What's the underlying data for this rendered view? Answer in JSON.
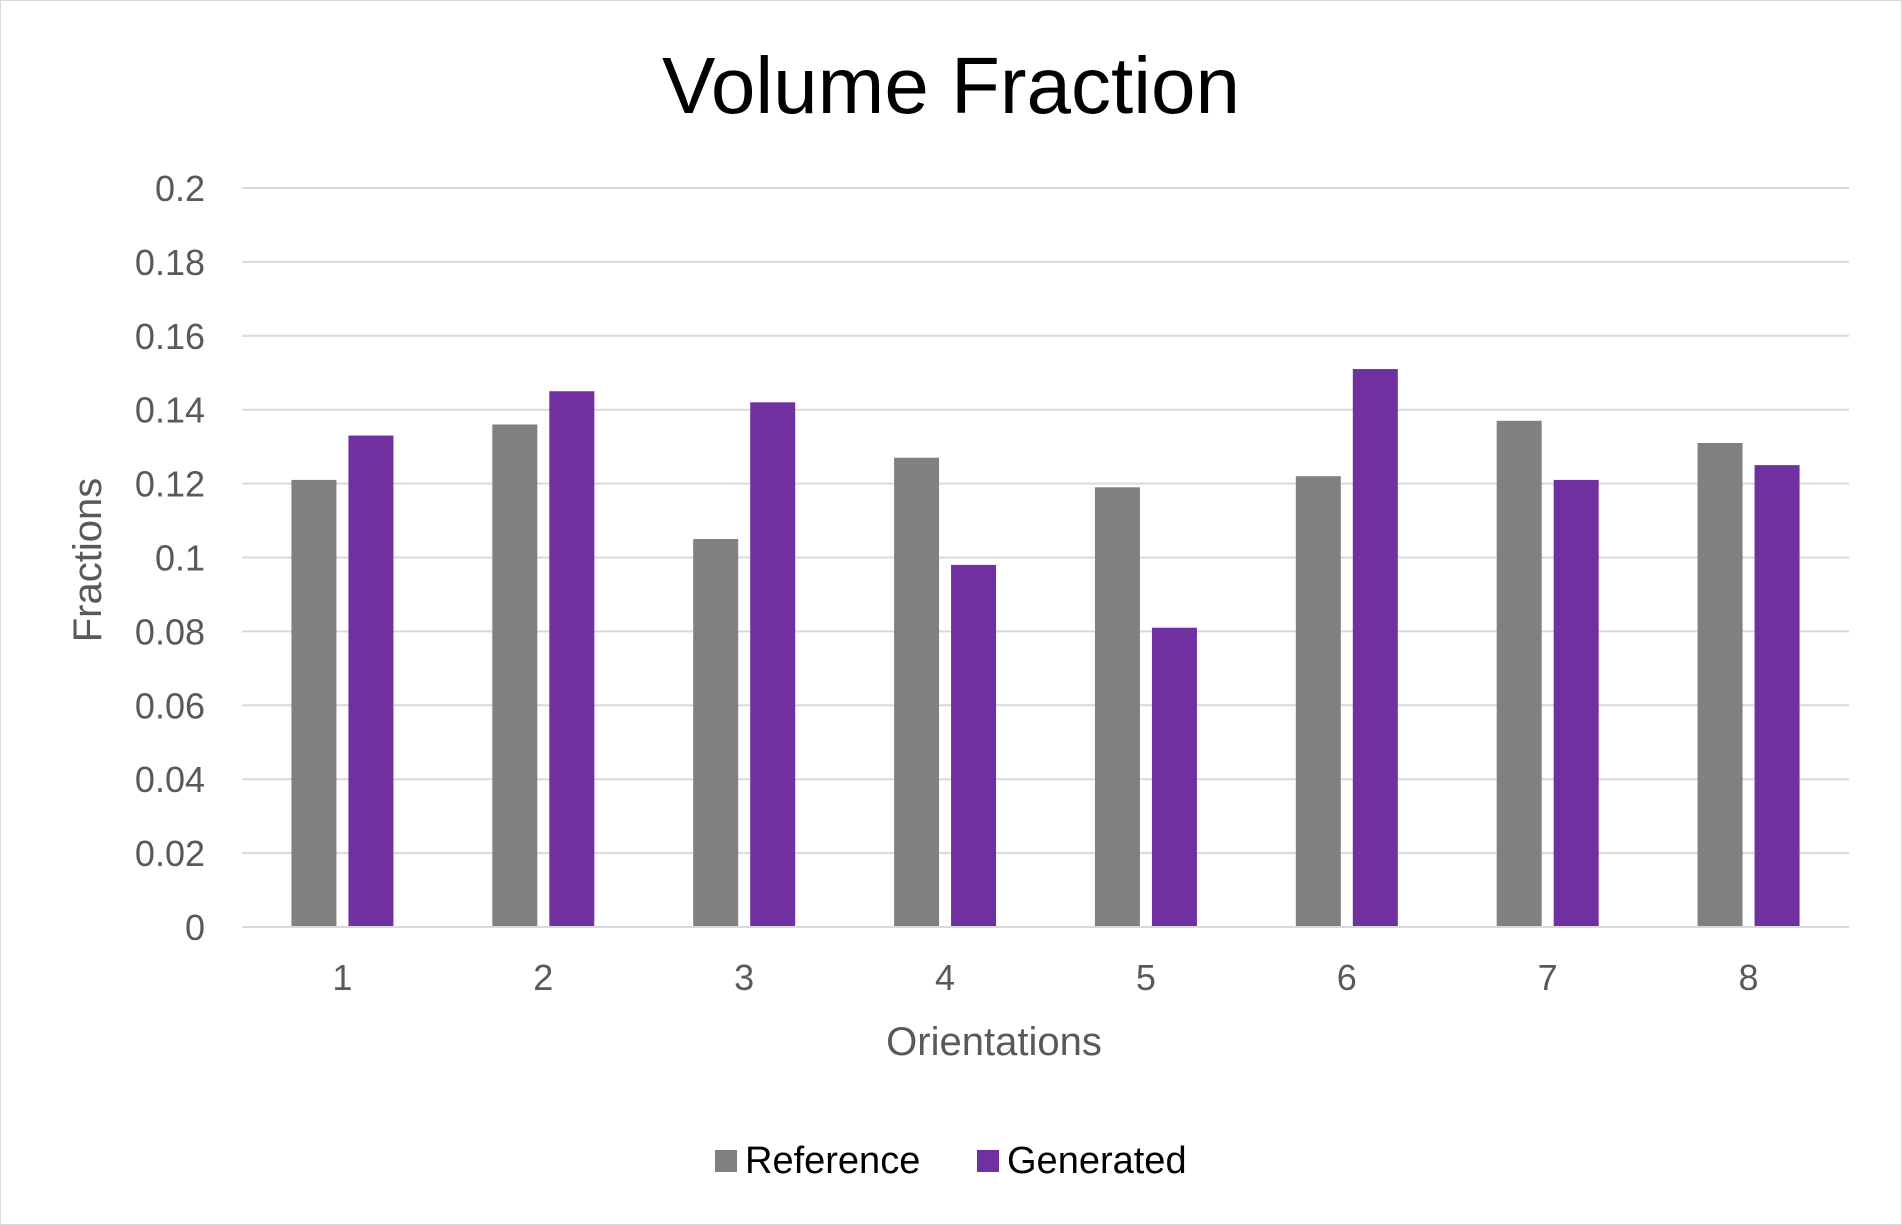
{
  "chart_data": {
    "type": "bar",
    "title": "Volume Fraction",
    "xlabel": "Orientations",
    "ylabel": "Fractions",
    "categories": [
      "1",
      "2",
      "3",
      "4",
      "5",
      "6",
      "7",
      "8"
    ],
    "ylim": [
      0,
      0.2
    ],
    "yticks": [
      0,
      0.02,
      0.04,
      0.06,
      0.08,
      0.1,
      0.12,
      0.14,
      0.16,
      0.18,
      0.2
    ],
    "ytick_labels": [
      "0",
      "0.02",
      "0.04",
      "0.06",
      "0.08",
      "0.1",
      "0.12",
      "0.14",
      "0.16",
      "0.18",
      "0.2"
    ],
    "grid": true,
    "legend_position": "bottom",
    "series": [
      {
        "name": "Reference",
        "color": "#808080",
        "values": [
          0.121,
          0.136,
          0.105,
          0.127,
          0.119,
          0.122,
          0.137,
          0.131
        ]
      },
      {
        "name": "Generated",
        "color": "#7030a0",
        "values": [
          0.133,
          0.145,
          0.142,
          0.098,
          0.081,
          0.151,
          0.121,
          0.125
        ]
      }
    ]
  }
}
